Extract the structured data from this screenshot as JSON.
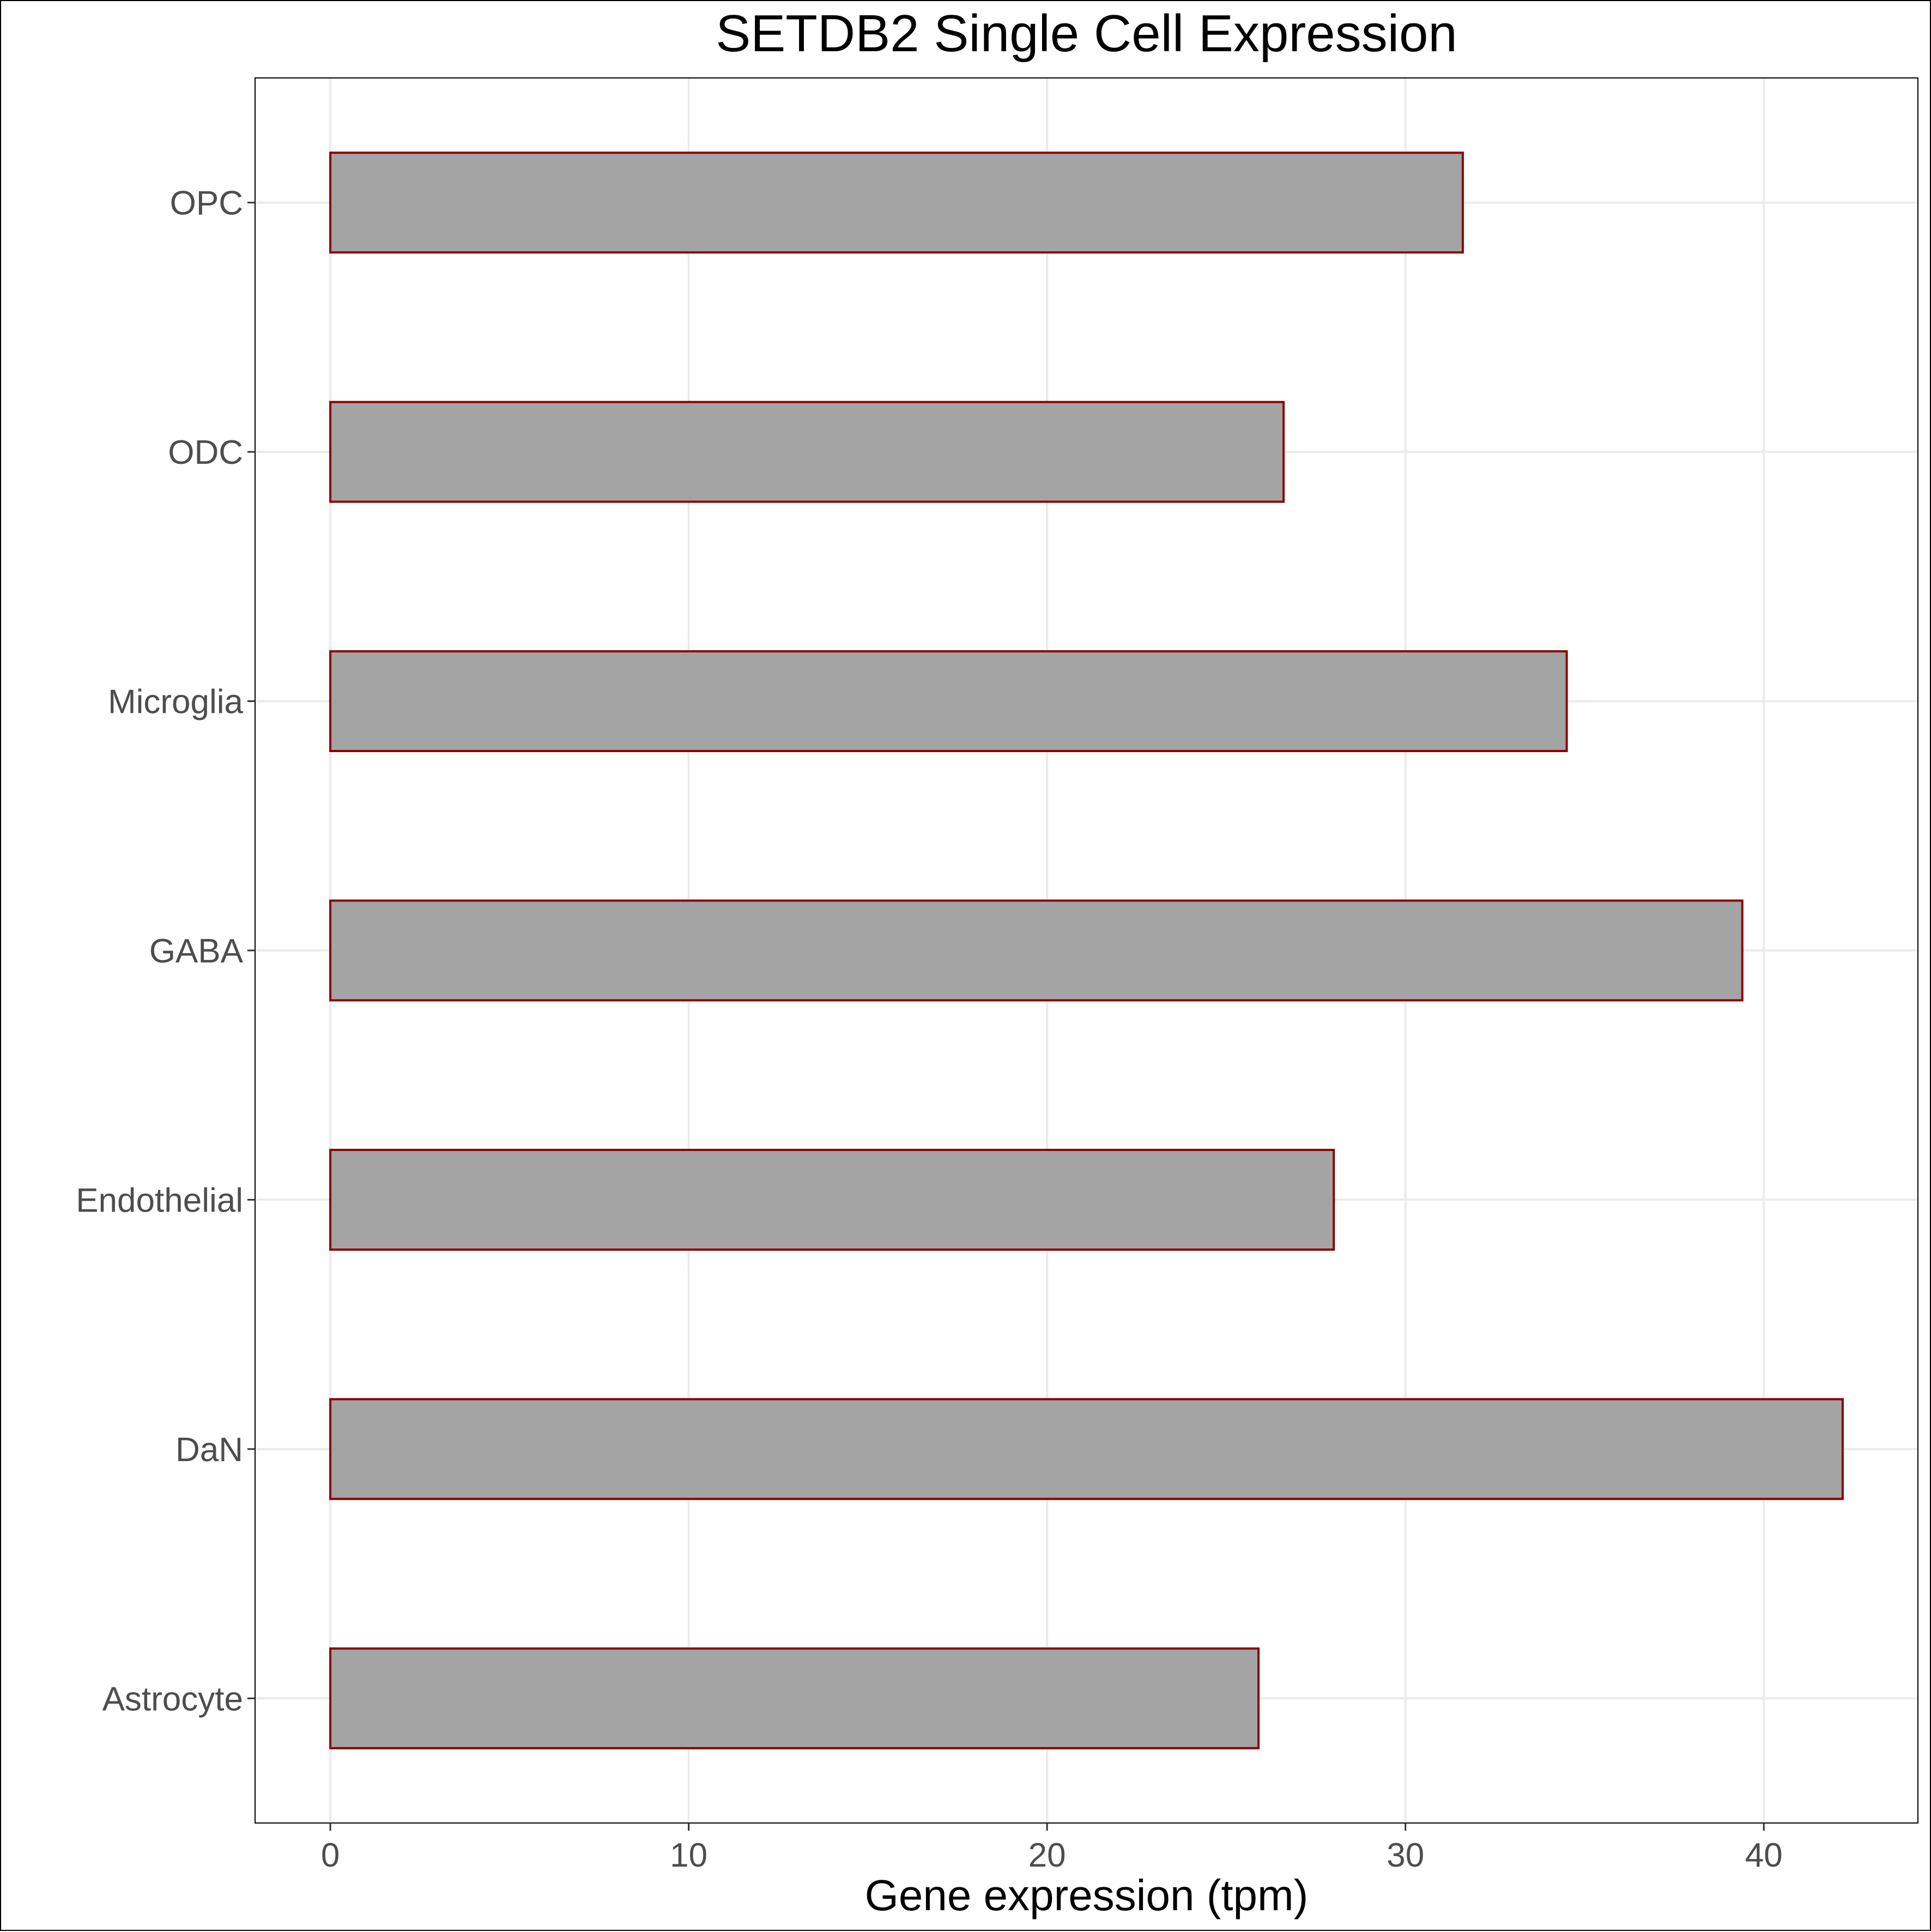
{
  "chart_data": {
    "type": "bar",
    "orientation": "horizontal",
    "title": "SETDB2 Single Cell Expression",
    "xlabel": "Gene expression (tpm)",
    "ylabel": "",
    "categories": [
      "Astrocyte",
      "DaN",
      "Endothelial",
      "GABA",
      "Microglia",
      "ODC",
      "OPC"
    ],
    "values": [
      25.9,
      42.2,
      28.0,
      39.4,
      34.5,
      26.6,
      31.6
    ],
    "xlim": [
      -2.1,
      44.3
    ],
    "xticks": [
      0,
      10,
      20,
      30,
      40
    ],
    "grid": true,
    "legend": "none",
    "colors": {
      "bar_fill": "#a4a4a4",
      "bar_stroke": "#8b0000",
      "grid": "#ebebeb",
      "axis": "#000000",
      "tick_text": "#4d4d4d"
    }
  }
}
